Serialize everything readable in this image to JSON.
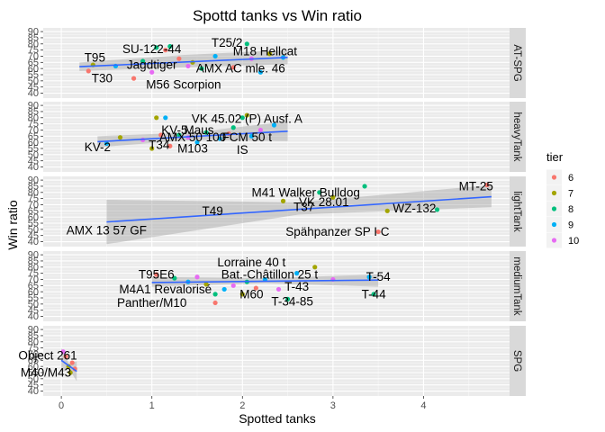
{
  "chart_data": {
    "type": "scatter",
    "title": "Spottd tanks vs Win ratio",
    "xlabel": "Spotted tanks",
    "ylabel": "Win ratio",
    "xlim": [
      -0.2,
      4.95
    ],
    "ylim": [
      36,
      93
    ],
    "x_ticks": [
      0,
      1,
      2,
      3,
      4
    ],
    "y_ticks": [
      40,
      45,
      50,
      55,
      60,
      65,
      70,
      75,
      80,
      85,
      90
    ],
    "grid": true,
    "legend": {
      "title": "tier",
      "position": "right",
      "entries": [
        {
          "label": "6",
          "color": "#F8766D"
        },
        {
          "label": "7",
          "color": "#A3A500"
        },
        {
          "label": "8",
          "color": "#00BF7D"
        },
        {
          "label": "9",
          "color": "#00B0F6"
        },
        {
          "label": "10",
          "color": "#E76BF3"
        }
      ]
    },
    "panels": [
      {
        "name": "AT-SPG",
        "trend": {
          "x": [
            0.2,
            2.5
          ],
          "y": [
            61.5,
            69
          ],
          "band": [
            [
              58,
              65
            ],
            [
              61,
              71
            ],
            [
              63.5,
              75
            ]
          ]
        },
        "points": [
          {
            "x": 0.3,
            "y": 58,
            "tier": "6"
          },
          {
            "x": 0.35,
            "y": 63,
            "tier": "7"
          },
          {
            "x": 0.6,
            "y": 62,
            "tier": "9"
          },
          {
            "x": 0.8,
            "y": 52,
            "tier": "6"
          },
          {
            "x": 0.9,
            "y": 66,
            "tier": "8"
          },
          {
            "x": 1.0,
            "y": 57,
            "tier": "10"
          },
          {
            "x": 1.05,
            "y": 77,
            "tier": "8"
          },
          {
            "x": 1.15,
            "y": 75,
            "tier": "6"
          },
          {
            "x": 1.2,
            "y": 78,
            "tier": "8"
          },
          {
            "x": 1.3,
            "y": 68,
            "tier": "6"
          },
          {
            "x": 1.4,
            "y": 62,
            "tier": "10"
          },
          {
            "x": 1.45,
            "y": 65,
            "tier": "7"
          },
          {
            "x": 1.55,
            "y": 60,
            "tier": "8"
          },
          {
            "x": 1.7,
            "y": 70,
            "tier": "9"
          },
          {
            "x": 1.9,
            "y": 61,
            "tier": "6"
          },
          {
            "x": 2.05,
            "y": 80,
            "tier": "8"
          },
          {
            "x": 2.1,
            "y": 68,
            "tier": "10"
          },
          {
            "x": 2.2,
            "y": 57,
            "tier": "9"
          },
          {
            "x": 2.3,
            "y": 72,
            "tier": "7"
          },
          {
            "x": 2.45,
            "y": 69,
            "tier": "9"
          }
        ],
        "labels": [
          {
            "text": "T95",
            "x": 0.37,
            "y": 69
          },
          {
            "text": "SU-122-44",
            "x": 1.0,
            "y": 76
          },
          {
            "text": "T25/2",
            "x": 1.83,
            "y": 81
          },
          {
            "text": "M18 Hellcat",
            "x": 2.25,
            "y": 74
          },
          {
            "text": "Jagdtiger",
            "x": 1.0,
            "y": 63
          },
          {
            "text": "AMX AC mle. 46",
            "x": 1.98,
            "y": 60
          },
          {
            "text": "T30",
            "x": 0.45,
            "y": 52
          },
          {
            "text": "M56 Scorpion",
            "x": 1.35,
            "y": 47
          }
        ]
      },
      {
        "name": "heavyTank",
        "trend": {
          "x": [
            0.4,
            2.5
          ],
          "y": [
            60.5,
            69
          ],
          "band": [
            [
              56,
              65
            ],
            [
              62,
              68
            ],
            [
              61,
              77
            ]
          ]
        },
        "points": [
          {
            "x": 0.5,
            "y": 59,
            "tier": "9"
          },
          {
            "x": 0.65,
            "y": 64,
            "tier": "7"
          },
          {
            "x": 0.9,
            "y": 62,
            "tier": "10"
          },
          {
            "x": 1.0,
            "y": 55,
            "tier": "7"
          },
          {
            "x": 1.05,
            "y": 80,
            "tier": "7"
          },
          {
            "x": 1.1,
            "y": 66,
            "tier": "6"
          },
          {
            "x": 1.15,
            "y": 80,
            "tier": "9"
          },
          {
            "x": 1.2,
            "y": 57,
            "tier": "6"
          },
          {
            "x": 1.3,
            "y": 66,
            "tier": "8"
          },
          {
            "x": 1.4,
            "y": 64,
            "tier": "10"
          },
          {
            "x": 1.5,
            "y": 60,
            "tier": "9"
          },
          {
            "x": 1.6,
            "y": 68,
            "tier": "8"
          },
          {
            "x": 1.75,
            "y": 63,
            "tier": "9"
          },
          {
            "x": 1.85,
            "y": 67,
            "tier": "6"
          },
          {
            "x": 1.9,
            "y": 72,
            "tier": "8"
          },
          {
            "x": 2.0,
            "y": 80,
            "tier": "8"
          },
          {
            "x": 2.05,
            "y": 82,
            "tier": "7"
          },
          {
            "x": 2.1,
            "y": 65,
            "tier": "9"
          },
          {
            "x": 2.2,
            "y": 70,
            "tier": "10"
          },
          {
            "x": 2.35,
            "y": 74,
            "tier": "9"
          }
        ],
        "labels": [
          {
            "text": "VK 45.02 (P) Ausf. A",
            "x": 2.05,
            "y": 79
          },
          {
            "text": "KV-5",
            "x": 1.25,
            "y": 70
          },
          {
            "text": "Maus",
            "x": 1.52,
            "y": 70
          },
          {
            "text": "AMX 50 100",
            "x": 1.45,
            "y": 64
          },
          {
            "text": "FCM 50 t",
            "x": 2.05,
            "y": 64
          },
          {
            "text": "T34",
            "x": 1.08,
            "y": 58
          },
          {
            "text": "M103",
            "x": 1.45,
            "y": 55
          },
          {
            "text": "IS",
            "x": 2.0,
            "y": 54
          },
          {
            "text": "KV-2",
            "x": 0.4,
            "y": 56
          }
        ]
      },
      {
        "name": "lightTank",
        "trend": {
          "x": [
            0.5,
            4.75
          ],
          "y": [
            56,
            76.5
          ],
          "band": [
            [
              38,
              74
            ],
            [
              62,
              72
            ],
            [
              68,
              86
            ]
          ]
        },
        "points": [
          {
            "x": 2.45,
            "y": 73,
            "tier": "7"
          },
          {
            "x": 2.85,
            "y": 80,
            "tier": "8"
          },
          {
            "x": 3.0,
            "y": 76,
            "tier": "7"
          },
          {
            "x": 3.35,
            "y": 85,
            "tier": "8"
          },
          {
            "x": 3.5,
            "y": 48,
            "tier": "6"
          },
          {
            "x": 3.6,
            "y": 65,
            "tier": "7"
          },
          {
            "x": 4.15,
            "y": 66,
            "tier": "8"
          },
          {
            "x": 4.7,
            "y": 86,
            "tier": "6"
          }
        ],
        "labels": [
          {
            "text": "MT-25",
            "x": 4.58,
            "y": 85
          },
          {
            "text": "M41 Walker Bulldog",
            "x": 2.7,
            "y": 80
          },
          {
            "text": "VK 28.01",
            "x": 2.9,
            "y": 72
          },
          {
            "text": "T37",
            "x": 2.68,
            "y": 68
          },
          {
            "text": "WZ-132",
            "x": 3.9,
            "y": 67
          },
          {
            "text": "T49",
            "x": 1.67,
            "y": 65
          },
          {
            "text": "Spähpanzer SP I C",
            "x": 3.05,
            "y": 48
          },
          {
            "text": "AMX 13 57 GF",
            "x": 0.5,
            "y": 49
          }
        ]
      },
      {
        "name": "mediumTank",
        "trend": {
          "x": [
            1.0,
            3.5
          ],
          "y": [
            67.5,
            69.5
          ],
          "band": [
            [
              64,
              72
            ],
            [
              67,
              71
            ],
            [
              64,
              74
            ]
          ]
        },
        "points": [
          {
            "x": 1.05,
            "y": 74,
            "tier": "6"
          },
          {
            "x": 1.25,
            "y": 71,
            "tier": "8"
          },
          {
            "x": 1.4,
            "y": 68,
            "tier": "9"
          },
          {
            "x": 1.5,
            "y": 72,
            "tier": "10"
          },
          {
            "x": 1.6,
            "y": 66,
            "tier": "7"
          },
          {
            "x": 1.7,
            "y": 58,
            "tier": "8"
          },
          {
            "x": 1.7,
            "y": 51,
            "tier": "6"
          },
          {
            "x": 1.8,
            "y": 62,
            "tier": "9"
          },
          {
            "x": 1.9,
            "y": 65,
            "tier": "10"
          },
          {
            "x": 2.0,
            "y": 58,
            "tier": "7"
          },
          {
            "x": 2.05,
            "y": 68,
            "tier": "8"
          },
          {
            "x": 2.15,
            "y": 63,
            "tier": "6"
          },
          {
            "x": 2.25,
            "y": 70,
            "tier": "9"
          },
          {
            "x": 2.4,
            "y": 62,
            "tier": "10"
          },
          {
            "x": 2.5,
            "y": 54,
            "tier": "8"
          },
          {
            "x": 2.6,
            "y": 75,
            "tier": "9"
          },
          {
            "x": 2.8,
            "y": 80,
            "tier": "7"
          },
          {
            "x": 3.0,
            "y": 70,
            "tier": "10"
          },
          {
            "x": 3.4,
            "y": 72,
            "tier": "9"
          },
          {
            "x": 3.45,
            "y": 58,
            "tier": "8"
          }
        ],
        "labels": [
          {
            "text": "Lorraine 40 t",
            "x": 2.1,
            "y": 84
          },
          {
            "text": "T95E6",
            "x": 1.05,
            "y": 74
          },
          {
            "text": "Bat.-Châtillon 25 t",
            "x": 2.3,
            "y": 74
          },
          {
            "text": "T-54",
            "x": 3.5,
            "y": 72
          },
          {
            "text": "T-43",
            "x": 2.6,
            "y": 64
          },
          {
            "text": "M4A1 Revalorisé",
            "x": 1.15,
            "y": 62
          },
          {
            "text": "M60",
            "x": 2.1,
            "y": 58
          },
          {
            "text": "T-44",
            "x": 3.45,
            "y": 58
          },
          {
            "text": "T-34-85",
            "x": 2.55,
            "y": 52
          },
          {
            "text": "Panther/M10",
            "x": 1.0,
            "y": 51
          }
        ]
      },
      {
        "name": "SPG",
        "trend": {
          "x": [
            0.0,
            0.17
          ],
          "y": [
            65,
            56
          ],
          "band": [
            [
              55,
              75
            ],
            [
              58,
              62
            ],
            [
              48,
              64
            ]
          ]
        },
        "points": [
          {
            "x": 0.02,
            "y": 72,
            "tier": "10"
          },
          {
            "x": 0.05,
            "y": 68,
            "tier": "6"
          },
          {
            "x": 0.08,
            "y": 60,
            "tier": "7"
          },
          {
            "x": 0.1,
            "y": 55,
            "tier": "7"
          },
          {
            "x": 0.12,
            "y": 63,
            "tier": "6"
          },
          {
            "x": 0.15,
            "y": 58,
            "tier": "6"
          }
        ],
        "labels": [
          {
            "text": "Object 261",
            "x": -0.15,
            "y": 69
          },
          {
            "text": "M40/M43",
            "x": -0.17,
            "y": 55
          }
        ]
      }
    ]
  }
}
